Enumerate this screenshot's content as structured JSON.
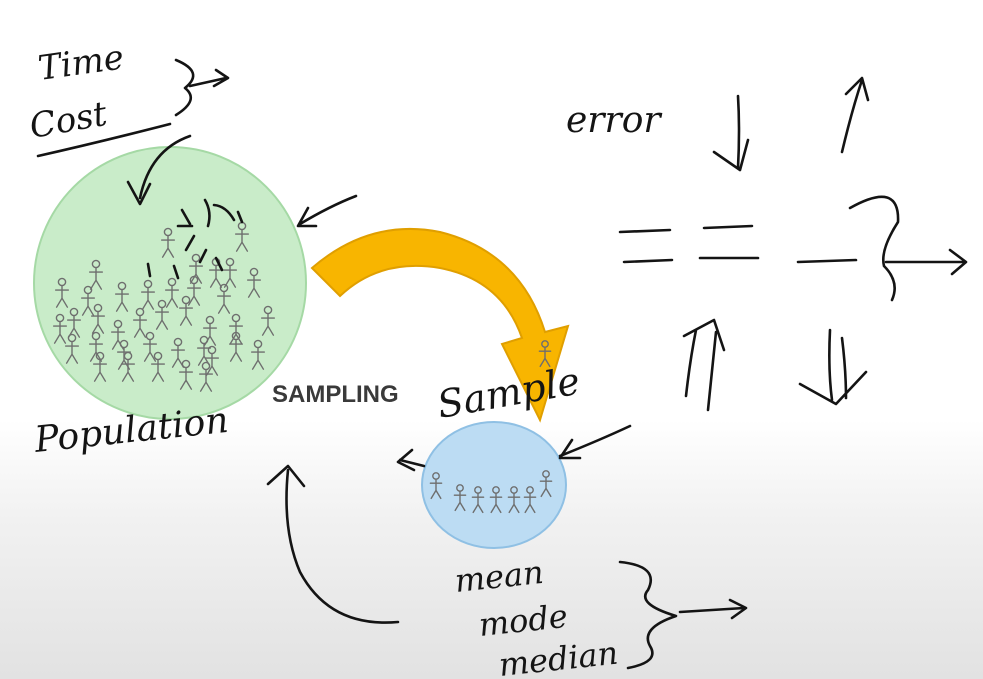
{
  "labels": {
    "sampling": "SAMPLING",
    "population": "Population",
    "sample": "Sample",
    "time": "Time",
    "cost": "Cost",
    "error": "error",
    "mean": "mean",
    "mode": "mode",
    "median": "median"
  },
  "colors": {
    "population_fill": "#c9ecc9",
    "population_stroke": "#a5d9a5",
    "sample_fill": "#bcdcf3",
    "sample_stroke": "#8fc0e4",
    "arrow_fill": "#f8b500",
    "arrow_stroke": "#e09f00",
    "ink": "#141414",
    "stick_figure": "#6e6e6e"
  },
  "population_figure_count": 38,
  "sample_figure_count": 7
}
